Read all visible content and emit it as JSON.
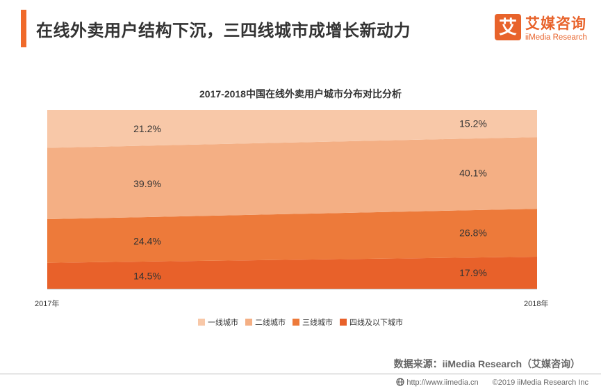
{
  "header": {
    "title": "在线外卖用户结构下沉，三四线城市成增长新动力",
    "accent_color": "#F06A2A"
  },
  "logo": {
    "mark": "艾",
    "cn": "艾媒咨询",
    "en": "iiMedia Research",
    "color": "#E8632B"
  },
  "chart_data": {
    "type": "area",
    "title": "2017-2018中国在线外卖用户城市分布对比分析",
    "x": [
      "2017年",
      "2018年"
    ],
    "stacking": "percent",
    "legend_position": "bottom",
    "grid": false,
    "series": [
      {
        "name": "一线城市",
        "values": [
          21.2,
          15.2
        ],
        "labels": [
          "21.2%",
          "15.2%"
        ],
        "color": "#F8C8A8"
      },
      {
        "name": "二线城市",
        "values": [
          39.9,
          40.1
        ],
        "labels": [
          "39.9%",
          "40.1%"
        ],
        "color": "#F4AF84"
      },
      {
        "name": "三线城市",
        "values": [
          24.4,
          26.8
        ],
        "labels": [
          "24.4%",
          "26.8%"
        ],
        "color": "#ED7A3A"
      },
      {
        "name": "四线及以下城市",
        "values": [
          14.5,
          17.9
        ],
        "labels": [
          "14.5%",
          "17.9%"
        ],
        "color": "#E8612A"
      }
    ]
  },
  "source": {
    "text": "数据来源：iiMedia Research（艾媒咨询）"
  },
  "footer": {
    "url": "http://www.iimedia.cn",
    "copyright": "©2019  iiMedia Research  Inc"
  }
}
